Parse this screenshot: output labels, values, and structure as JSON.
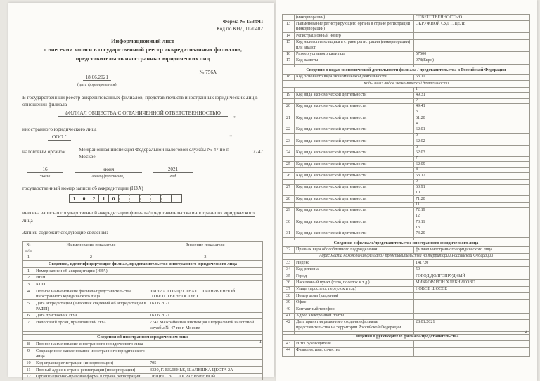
{
  "page1": {
    "form_code": "Форма № 15ЗФП",
    "knd_code": "Код по КНД 1120402",
    "title_lines": [
      "Информационный лист",
      "о внесении записи в государственный реестр аккредитованных филиалов,",
      "представительств иностранных юридических лиц"
    ],
    "form_date": "18.06.2021",
    "form_date_caption": "(дата формирования)",
    "doc_number": "№ 756А",
    "intro_text": "В государственный реестр аккредитованных филиалов, представительств иностранных юридических лиц в отношении ",
    "intro_underlined": "филиала",
    "branch_name": "ФИЛИАЛ ОБЩЕСТВА С ОГРАНИЧЕННОЙ ОТВЕТСТВЕННОСТЬЮ",
    "redaction_mark": "*",
    "foreign_entity_label": "иностранного юридического лица",
    "foreign_entity_value": "ООО \"",
    "tax_authority_label": "налоговым органом",
    "tax_authority_value": "Межрайонная инспекция Федеральной налоговой службы № 47 по г. Москве",
    "tax_authority_code": "7747",
    "day": "16",
    "month": "июня",
    "year": "2021",
    "day_caption": "число",
    "month_caption": "месяц (прописью)",
    "year_caption": "год",
    "nza_label": "государственный номер записи об аккредитации (НЗА)",
    "nza_digits": [
      "1",
      "0",
      "2",
      "1",
      "0",
      "",
      "",
      "",
      "",
      "",
      ""
    ],
    "record_text_plain": "внесена запись",
    "record_text_underlined": "о государственной аккредитации филиала/представительства иностранного юридического лица",
    "record_intro": "Запись содержит следующие сведения:",
    "page_number": "1"
  },
  "page2": {
    "page_number": "2"
  },
  "page1_table": {
    "rows": [
      {
        "t": "cells",
        "center": true,
        "c": [
          "№ п/п",
          "Наименование показателя",
          "Значение показателя"
        ]
      },
      {
        "t": "cells",
        "center": true,
        "c": [
          "1",
          "2",
          "3"
        ]
      },
      {
        "t": "section",
        "text": "Сведения, идентифицирующие филиал, представительство иностранного юридического лица"
      },
      {
        "t": "cells",
        "c": [
          "1",
          "Номер записи об аккредитации (НЗА)",
          ""
        ]
      },
      {
        "t": "cells",
        "c": [
          "2",
          "ИНН",
          ""
        ]
      },
      {
        "t": "cells",
        "c": [
          "3",
          "КПП",
          ""
        ]
      },
      {
        "t": "cells",
        "c": [
          "4",
          "Полное наименование филиала/представительства иностранного юридического лица",
          "ФИЛИАЛ ОБЩЕСТВА С ОГРАНИЧЕННОЙ ОТВЕТСТВЕННОСТЬЮ"
        ]
      },
      {
        "t": "cells",
        "c": [
          "5",
          "Дата аккредитации (внесения сведений об аккредитации в РАФП)",
          "16.06.2021"
        ]
      },
      {
        "t": "cells",
        "c": [
          "6",
          "Дата присвоения НЗА",
          "16.06.2021"
        ]
      },
      {
        "t": "cells",
        "c": [
          "7",
          "Налоговый орган, присвоивший НЗА",
          "7747 Межрайонная инспекция Федеральной налоговой службы № 47 по г. Москве"
        ]
      },
      {
        "t": "spacer"
      },
      {
        "t": "section",
        "text": "Сведения об иностранном юридическом лице"
      },
      {
        "t": "cells",
        "c": [
          "8",
          "Полное наименование иностранного юридического лица",
          ""
        ]
      },
      {
        "t": "cells",
        "c": [
          "9",
          "Сокращенное наименование иностранного юридического лица",
          ""
        ]
      },
      {
        "t": "cells",
        "c": [
          "10",
          "Код страны регистрации (инкорпорации)",
          "705"
        ]
      },
      {
        "t": "cells",
        "c": [
          "11",
          "Полный адрес в стране регистрации (инкорпорации)",
          "3320, Г. ВЕЛЕНЬЕ, ШАЛЕШКА ЦЕСТА 2А"
        ]
      },
      {
        "t": "cells",
        "c": [
          "12",
          "Организационно-правовая форма в стране регистрации",
          "ОБЩЕСТВО С ОГРАНИЧЕННОЙ"
        ]
      }
    ]
  },
  "page2_table": {
    "rows": [
      {
        "t": "cells",
        "c": [
          "",
          "(инкорпорации)",
          "ОТВЕТСТВЕННОСТЬЮ"
        ]
      },
      {
        "t": "cells",
        "c": [
          "13",
          "Наименование регистрирующего органа в стране регистрации (инкорпорации)",
          "ОКРУЖНОЙ СУД Г. ЦЕЛЕ"
        ]
      },
      {
        "t": "cells",
        "c": [
          "14",
          "Регистрационный номер",
          ""
        ]
      },
      {
        "t": "cells",
        "c": [
          "15",
          "Код налогоплательщика в стране регистрации (инкорпорации) или аналог",
          ""
        ]
      },
      {
        "t": "cells",
        "c": [
          "16",
          "Размер уставного капитала",
          "57500"
        ]
      },
      {
        "t": "cells",
        "c": [
          "17",
          "Код валюты",
          "978(Евро)"
        ]
      },
      {
        "t": "spacer"
      },
      {
        "t": "section",
        "text": "Сведения о видах экономической деятельности филиала / представительства в Российской Федерации"
      },
      {
        "t": "cells",
        "c": [
          "18",
          "Код основного вида экономической деятельности",
          "63.11"
        ]
      },
      {
        "t": "sub",
        "text": "Коды иных видов экономической деятельности"
      },
      {
        "t": "counter",
        "text": "1"
      },
      {
        "t": "cells",
        "c": [
          "19",
          "Код вида экономической деятельности",
          "49.31"
        ]
      },
      {
        "t": "counter",
        "text": "2"
      },
      {
        "t": "cells",
        "c": [
          "20",
          "Код вида экономической деятельности",
          "49.41"
        ]
      },
      {
        "t": "counter",
        "text": "3"
      },
      {
        "t": "cells",
        "c": [
          "21",
          "Код вида экономической деятельности",
          "61.20"
        ]
      },
      {
        "t": "counter",
        "text": "4"
      },
      {
        "t": "cells",
        "c": [
          "22",
          "Код вида экономической деятельности",
          "62.01"
        ]
      },
      {
        "t": "counter",
        "text": "5"
      },
      {
        "t": "cells",
        "c": [
          "23",
          "Код вида экономической деятельности",
          "62.02"
        ]
      },
      {
        "t": "counter",
        "text": "6"
      },
      {
        "t": "cells",
        "c": [
          "24",
          "Код вида экономической деятельности",
          "62.03"
        ]
      },
      {
        "t": "counter",
        "text": "7"
      },
      {
        "t": "cells",
        "c": [
          "25",
          "Код вида экономической деятельности",
          "62.09"
        ]
      },
      {
        "t": "counter",
        "text": "8"
      },
      {
        "t": "cells",
        "c": [
          "26",
          "Код вида экономической деятельности",
          "63.12"
        ]
      },
      {
        "t": "counter",
        "text": "9"
      },
      {
        "t": "cells",
        "c": [
          "27",
          "Код вида экономической деятельности",
          "63.91"
        ]
      },
      {
        "t": "counter",
        "text": "10"
      },
      {
        "t": "cells",
        "c": [
          "28",
          "Код вида экономической деятельности",
          "71.20"
        ]
      },
      {
        "t": "counter",
        "text": "11"
      },
      {
        "t": "cells",
        "c": [
          "29",
          "Код вида экономической деятельности",
          "72.19"
        ]
      },
      {
        "t": "counter",
        "text": "12"
      },
      {
        "t": "cells",
        "c": [
          "30",
          "Код вида экономической деятельности",
          "73.11"
        ]
      },
      {
        "t": "counter",
        "text": "13"
      },
      {
        "t": "cells",
        "c": [
          "31",
          "Код вида экономической деятельности",
          "73.20"
        ]
      },
      {
        "t": "spacer"
      },
      {
        "t": "section",
        "text": "Сведения о филиале/представительстве иностранного юридического лица"
      },
      {
        "t": "cells",
        "c": [
          "32",
          "Признак вида обособленного подразделения",
          "филиал иностранного юридического лица"
        ]
      },
      {
        "t": "sub",
        "text": "Адрес места нахождения филиала / представительства на территории Российской Федерации"
      },
      {
        "t": "cells",
        "c": [
          "33",
          "Индекс",
          "141720"
        ]
      },
      {
        "t": "cells",
        "c": [
          "34",
          "Код региона",
          "50"
        ]
      },
      {
        "t": "cells",
        "c": [
          "35",
          "Город",
          "ГОРОД ДОЛГОПРУДНЫЙ"
        ]
      },
      {
        "t": "cells",
        "c": [
          "36",
          "Населенный пункт (село, поселок и т.д.)",
          "МИКРОРАЙОН ХЛЕБНИКОВО"
        ]
      },
      {
        "t": "cells",
        "c": [
          "37",
          "Улица (проспект, переулок и т.д.)",
          "НОВОЕ ШОССЕ"
        ]
      },
      {
        "t": "cells",
        "c": [
          "38",
          "Номер дома (владения)",
          ""
        ]
      },
      {
        "t": "cells",
        "c": [
          "39",
          "Офис",
          ""
        ]
      },
      {
        "t": "cells",
        "c": [
          "40",
          "Контактный телефон",
          ""
        ]
      },
      {
        "t": "cells",
        "c": [
          "41",
          "Адрес электронной почты",
          ""
        ]
      },
      {
        "t": "cells",
        "c": [
          "42",
          "Дата принятия решения о создании филиала/представительства на территории Российской Федерации",
          "28.01.2021"
        ]
      },
      {
        "t": "spacer"
      },
      {
        "t": "section",
        "text": "Сведения о руководителе филиала/представительства"
      },
      {
        "t": "cells",
        "c": [
          "43",
          "ИНН руководителя",
          ""
        ]
      },
      {
        "t": "cells",
        "c": [
          "44",
          "Фамилия, имя, отчество",
          ""
        ]
      },
      {
        "t": "spacer"
      }
    ]
  }
}
